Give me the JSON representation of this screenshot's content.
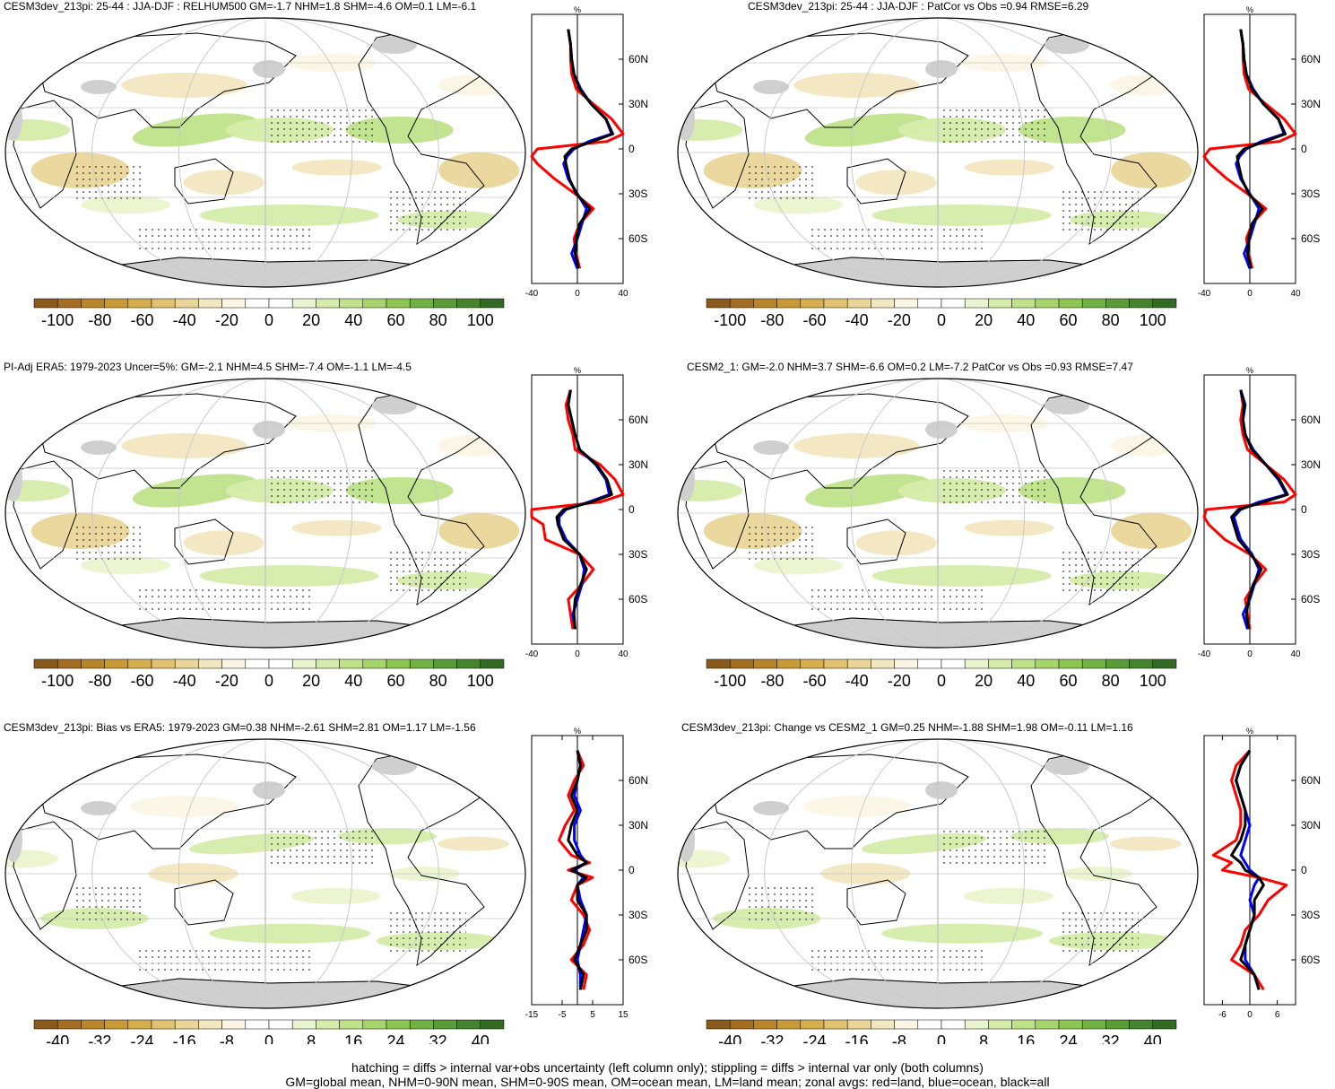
{
  "colors": {
    "red": "#ff0000",
    "blue": "#0000ff",
    "black": "#000000",
    "land": "#cfcfcf",
    "ocean": "#ffffff",
    "palette": [
      "#8a5a1c",
      "#a46d22",
      "#b98528",
      "#c99a35",
      "#d6ae4e",
      "#e0c271",
      "#ead699",
      "#f2e7c0",
      "#fbf6e4",
      "#ffffff",
      "#ffffff",
      "#eaf5cf",
      "#d5ecaa",
      "#bfe289",
      "#a6d56b",
      "#8cc552",
      "#72b244",
      "#5a9b38",
      "#45832d",
      "#336b24"
    ]
  },
  "lat_tick_labels": [
    "60N",
    "30N",
    "0",
    "30S",
    "60S"
  ],
  "lat_ticks": [
    60,
    30,
    0,
    -30,
    -60
  ],
  "footnotes": {
    "line1": "hatching = diffs > internal var+obs uncertainty (left column only); stippling = diffs > internal var only (both columns)",
    "line2": "GM=global mean, NHM=0-90N mean, SHM=0-90S mean, OM=ocean mean, LM=land mean; zonal avgs: red=land, blue=ocean, black=all"
  },
  "panels": [
    {
      "title": "CESM3dev_213pi: 25-44 : JJA-DJF : RELHUM500 GM=-1.7 NHM=1.8 SHM=-4.6 OM=0.1 LM=-6.1",
      "unit": "%",
      "xticks": [
        -40,
        0,
        40
      ],
      "xtick_labels": [
        "-40",
        "0",
        "40"
      ],
      "cb_labels": [
        "-100",
        "-80",
        "-60",
        "-40",
        "-20",
        "0",
        "20",
        "40",
        "60",
        "80",
        "100"
      ],
      "chart_data": {
        "type": "line",
        "xlim": [
          -40,
          40
        ],
        "ylim": [
          -90,
          90
        ],
        "lat": [
          80,
          70,
          60,
          50,
          40,
          30,
          20,
          10,
          5,
          0,
          -5,
          -10,
          -20,
          -30,
          -40,
          -50,
          -60,
          -70,
          -80
        ],
        "series": [
          {
            "name": "land",
            "x": [
              -8,
              -6,
              -6,
              -5,
              -1,
              14,
              30,
              40,
              26,
              -35,
              -40,
              -35,
              -20,
              -2,
              14,
              2,
              -3,
              -1,
              2
            ]
          },
          {
            "name": "ocean",
            "x": [
              -8,
              -6,
              -5,
              -3,
              3,
              12,
              25,
              30,
              10,
              -3,
              -9,
              -12,
              -8,
              0,
              8,
              4,
              0,
              -5,
              0
            ]
          },
          {
            "name": "all",
            "x": [
              -8,
              -6,
              -5,
              -3,
              2,
              12,
              25,
              31,
              13,
              -5,
              -11,
              -10,
              -7,
              -1,
              11,
              2,
              -1,
              -2,
              1
            ]
          }
        ]
      }
    },
    {
      "title": "CESM3dev_213pi: 25-44 : JJA-DJF : PatCor vs Obs =0.94 RMSE=6.29",
      "unit": "%",
      "xticks": [
        -40,
        0,
        40
      ],
      "xtick_labels": [
        "-40",
        "0",
        "40"
      ],
      "cb_labels": [
        "-100",
        "-80",
        "-60",
        "-40",
        "-20",
        "0",
        "20",
        "40",
        "60",
        "80",
        "100"
      ],
      "chart_data": {
        "type": "line",
        "xlim": [
          -40,
          40
        ],
        "ylim": [
          -90,
          90
        ],
        "lat": [
          80,
          70,
          60,
          50,
          40,
          30,
          20,
          10,
          5,
          0,
          -5,
          -10,
          -20,
          -30,
          -40,
          -50,
          -60,
          -70,
          -80
        ],
        "series": [
          {
            "name": "land",
            "x": [
              -8,
              -6,
              -6,
              -5,
              -1,
              14,
              30,
              40,
              26,
              -35,
              -40,
              -35,
              -20,
              -2,
              14,
              2,
              -3,
              -1,
              2
            ]
          },
          {
            "name": "ocean",
            "x": [
              -8,
              -6,
              -5,
              -3,
              3,
              12,
              25,
              30,
              10,
              -3,
              -9,
              -12,
              -8,
              0,
              8,
              4,
              0,
              -5,
              0
            ]
          },
          {
            "name": "all",
            "x": [
              -8,
              -6,
              -5,
              -3,
              2,
              12,
              25,
              31,
              13,
              -5,
              -11,
              -10,
              -7,
              -1,
              11,
              2,
              -1,
              -2,
              1
            ]
          }
        ]
      }
    },
    {
      "title": "PI-Adj ERA5: 1979-2023 Uncer=5%: GM=-2.1 NHM=4.5 SHM=-7.4 OM=-1.1 LM=-4.5",
      "unit": "%",
      "xticks": [
        -40,
        0,
        40
      ],
      "xtick_labels": [
        "-40",
        "0",
        "40"
      ],
      "cb_labels": [
        "-100",
        "-80",
        "-60",
        "-40",
        "-20",
        "0",
        "20",
        "40",
        "60",
        "80",
        "100"
      ],
      "chart_data": {
        "type": "line",
        "xlim": [
          -40,
          40
        ],
        "ylim": [
          -90,
          90
        ],
        "lat": [
          80,
          70,
          60,
          50,
          40,
          30,
          20,
          10,
          5,
          0,
          -5,
          -10,
          -20,
          -30,
          -40,
          -50,
          -60,
          -70,
          -80
        ],
        "series": [
          {
            "name": "land",
            "x": [
              -6,
              -10,
              -8,
              -4,
              -2,
              20,
              33,
              40,
              20,
              -40,
              -40,
              -30,
              -28,
              2,
              14,
              4,
              -8,
              -6,
              -4
            ]
          },
          {
            "name": "ocean",
            "x": [
              -6,
              -8,
              -5,
              -2,
              2,
              16,
              25,
              28,
              10,
              -10,
              -16,
              -16,
              -10,
              2,
              6,
              4,
              0,
              -4,
              -2
            ]
          },
          {
            "name": "all",
            "x": [
              -6,
              -8,
              -5,
              -2,
              2,
              17,
              26,
              30,
              12,
              -12,
              -18,
              -17,
              -12,
              2,
              8,
              3,
              -2,
              -3,
              -2
            ]
          }
        ]
      }
    },
    {
      "title": "CESM2_1: GM=-2.0 NHM=3.7 SHM=-6.6 OM=0.2 LM=-7.2 PatCor vs Obs =0.93 RMSE=7.47",
      "unit": "%",
      "xticks": [
        -40,
        0,
        40
      ],
      "xtick_labels": [
        "-40",
        "0",
        "40"
      ],
      "cb_labels": [
        "-100",
        "-80",
        "-60",
        "-40",
        "-20",
        "0",
        "20",
        "40",
        "60",
        "80",
        "100"
      ],
      "chart_data": {
        "type": "line",
        "xlim": [
          -40,
          40
        ],
        "ylim": [
          -90,
          90
        ],
        "lat": [
          80,
          70,
          60,
          50,
          40,
          30,
          20,
          10,
          5,
          0,
          -5,
          -10,
          -20,
          -30,
          -40,
          -50,
          -60,
          -70,
          -80
        ],
        "series": [
          {
            "name": "land",
            "x": [
              -8,
              -6,
              -8,
              -6,
              -2,
              14,
              30,
              42,
              30,
              -38,
              -40,
              -36,
              -22,
              0,
              14,
              4,
              -4,
              -2,
              0
            ]
          },
          {
            "name": "ocean",
            "x": [
              -8,
              -4,
              -6,
              -4,
              3,
              14,
              25,
              32,
              8,
              -8,
              -14,
              -12,
              -8,
              2,
              8,
              4,
              0,
              -6,
              -2
            ]
          },
          {
            "name": "all",
            "x": [
              -8,
              -5,
              -6,
              -4,
              2,
              14,
              26,
              33,
              12,
              -10,
              -16,
              -14,
              -10,
              1,
              10,
              3,
              -1,
              -3,
              -1
            ]
          }
        ]
      }
    },
    {
      "title": "CESM3dev_213pi: Bias vs ERA5: 1979-2023 GM=0.38 NHM=-2.61 SHM=2.81 OM=1.17 LM=-1.56",
      "unit": "%",
      "xticks": [
        -15,
        -5,
        5,
        15
      ],
      "xtick_labels": [
        "-15",
        "-5",
        "5",
        "15"
      ],
      "cb_labels": [
        "-40",
        "-32",
        "-24",
        "-16",
        "-8",
        "0",
        "8",
        "16",
        "24",
        "32",
        "40"
      ],
      "chart_data": {
        "type": "line",
        "xlim": [
          -15,
          15
        ],
        "ylim": [
          -90,
          90
        ],
        "lat": [
          80,
          70,
          60,
          50,
          40,
          30,
          20,
          10,
          5,
          0,
          -5,
          -10,
          -20,
          -30,
          -40,
          -50,
          -60,
          -70,
          -80
        ],
        "series": [
          {
            "name": "land",
            "x": [
              0,
              2,
              -1,
              -3,
              -1,
              -4,
              -6,
              -2,
              4,
              -3,
              5,
              0,
              -2,
              2,
              4,
              2,
              -2,
              3,
              2
            ]
          },
          {
            "name": "ocean",
            "x": [
              0,
              1,
              0,
              -1,
              1,
              -1,
              -1,
              1,
              3,
              -1,
              2,
              0,
              1,
              3,
              2,
              1,
              0,
              1,
              1
            ]
          },
          {
            "name": "all",
            "x": [
              0,
              1,
              0,
              -2,
              0,
              -2,
              -3,
              0,
              3,
              -2,
              3,
              0,
              0,
              3,
              3,
              1,
              -1,
              2,
              1
            ]
          }
        ]
      }
    },
    {
      "title": "CESM3dev_213pi: Change vs CESM2_1 GM=0.25 NHM=-1.88 SHM=1.98 OM=-0.11 LM=1.16",
      "unit": "%",
      "xticks": [
        -6,
        0,
        6
      ],
      "xtick_labels": [
        "-6",
        "0",
        "6"
      ],
      "cb_labels": [
        "-40",
        "-32",
        "-24",
        "-16",
        "-8",
        "0",
        "8",
        "16",
        "24",
        "32",
        "40"
      ],
      "chart_data": {
        "type": "line",
        "xlim": [
          -10,
          10
        ],
        "ylim": [
          -90,
          90
        ],
        "lat": [
          80,
          70,
          60,
          50,
          40,
          30,
          20,
          10,
          5,
          0,
          -5,
          -10,
          -20,
          -30,
          -40,
          -50,
          -60,
          -70,
          -80
        ],
        "series": [
          {
            "name": "land",
            "x": [
              0,
              -3,
              -4,
              -3,
              -2,
              -2,
              -3,
              -8,
              -4,
              -6,
              2,
              8,
              4,
              2,
              -1,
              -2,
              -4,
              1,
              3
            ]
          },
          {
            "name": "ocean",
            "x": [
              0,
              -2,
              -3,
              -2,
              -1,
              0,
              -1,
              -2,
              -1,
              0,
              2,
              1,
              0,
              1,
              0,
              -1,
              -1,
              1,
              2
            ]
          },
          {
            "name": "all",
            "x": [
              0,
              -2,
              -3,
              -2,
              -1,
              -1,
              -2,
              -4,
              -2,
              -1,
              2,
              3,
              1,
              1,
              0,
              -1,
              -2,
              1,
              2
            ]
          }
        ]
      }
    }
  ]
}
